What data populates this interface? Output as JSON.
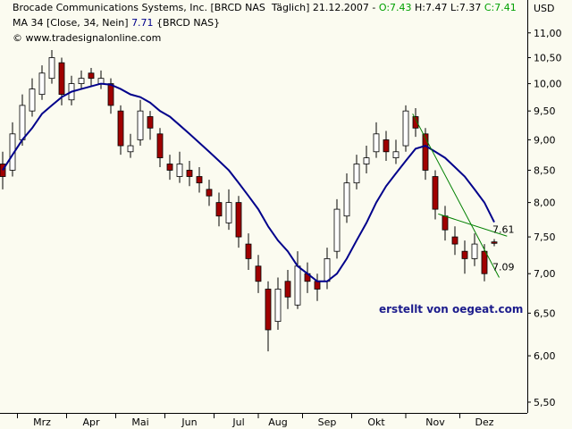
{
  "chart_data": {
    "type": "candlestick",
    "header": [
      [
        {
          "text": "Brocade Communications Systems, Inc. [BRCD NAS  Täglich] 21.12.2007 - ",
          "color": "#000000"
        },
        {
          "text": "O:7.43",
          "color": "#00a000"
        },
        {
          "text": " H:7.47 L:7.37 ",
          "color": "#000000"
        },
        {
          "text": "C:7.41",
          "color": "#00a000"
        }
      ],
      [
        {
          "text": "MA 34 [Close, 34, Nein] ",
          "color": "#000000"
        },
        {
          "text": "7.71",
          "color": "#00008b"
        },
        {
          "text": " {BRCD NAS}",
          "color": "#000000"
        }
      ],
      [
        {
          "text": "© www.tradesignalonline.com",
          "color": "#000000"
        }
      ]
    ],
    "axis_label": "USD",
    "watermark": "erstellt von oegeat.com",
    "categories": [
      null,
      null,
      null,
      null,
      "Mrz",
      null,
      null,
      null,
      null,
      "Apr",
      null,
      null,
      null,
      null,
      "Mai",
      null,
      null,
      null,
      null,
      "Jun",
      null,
      null,
      null,
      null,
      "Jul",
      null,
      null,
      null,
      "Aug",
      null,
      null,
      null,
      null,
      "Sep",
      null,
      null,
      null,
      null,
      "Okt",
      null,
      null,
      null,
      null,
      null,
      "Nov",
      null,
      null,
      null,
      null,
      "Dez",
      null
    ],
    "candles": {
      "up_color": "#ffffff",
      "down_color": "#a00000",
      "open": [
        8.6,
        8.5,
        9.0,
        9.5,
        9.8,
        10.1,
        10.4,
        9.7,
        10.0,
        10.2,
        10.0,
        10.0,
        9.5,
        8.8,
        9.0,
        9.4,
        9.1,
        8.6,
        8.4,
        8.5,
        8.4,
        8.2,
        8.0,
        7.7,
        8.0,
        7.4,
        7.1,
        6.8,
        6.4,
        6.9,
        6.6,
        7.0,
        6.9,
        6.9,
        7.3,
        7.8,
        8.3,
        8.6,
        8.8,
        9.0,
        8.7,
        8.9,
        9.4,
        9.1,
        8.4,
        7.8,
        7.5,
        7.3,
        7.2,
        7.3,
        7.43
      ],
      "high": [
        8.8,
        9.3,
        9.8,
        10.1,
        10.35,
        10.65,
        10.5,
        10.15,
        10.25,
        10.3,
        10.25,
        10.1,
        9.6,
        9.1,
        9.7,
        9.5,
        9.2,
        8.75,
        8.8,
        8.65,
        8.55,
        8.35,
        8.15,
        8.2,
        8.1,
        7.55,
        7.25,
        6.9,
        6.95,
        7.05,
        7.3,
        7.15,
        7.0,
        7.35,
        8.05,
        8.45,
        8.75,
        8.9,
        9.3,
        9.15,
        9.0,
        9.6,
        9.55,
        9.2,
        8.5,
        7.95,
        7.65,
        7.45,
        7.55,
        7.4,
        7.47
      ],
      "low": [
        8.2,
        8.4,
        8.9,
        9.4,
        9.7,
        10.0,
        9.6,
        9.6,
        9.9,
        9.95,
        9.9,
        9.45,
        8.75,
        8.7,
        8.9,
        9.0,
        8.55,
        8.35,
        8.3,
        8.25,
        8.15,
        7.95,
        7.65,
        7.6,
        7.35,
        7.05,
        6.75,
        6.05,
        6.3,
        6.55,
        6.55,
        6.75,
        6.65,
        6.8,
        7.2,
        7.7,
        8.2,
        8.45,
        8.7,
        8.65,
        8.6,
        8.8,
        9.05,
        8.35,
        7.75,
        7.45,
        7.25,
        7.0,
        7.1,
        6.9,
        7.37
      ],
      "close": [
        8.4,
        9.1,
        9.6,
        9.9,
        10.2,
        10.5,
        9.8,
        10.0,
        10.1,
        10.1,
        10.1,
        9.6,
        8.9,
        8.9,
        9.5,
        9.2,
        8.7,
        8.5,
        8.6,
        8.4,
        8.3,
        8.1,
        7.8,
        8.0,
        7.5,
        7.2,
        6.9,
        6.3,
        6.8,
        6.7,
        7.1,
        6.9,
        6.8,
        7.2,
        7.9,
        8.3,
        8.6,
        8.7,
        9.1,
        8.8,
        8.8,
        9.5,
        9.2,
        8.5,
        7.9,
        7.6,
        7.4,
        7.2,
        7.4,
        7.0,
        7.41
      ]
    },
    "series": [
      {
        "name": "MA 34",
        "color": "#00008b",
        "values": [
          8.5,
          8.75,
          9.0,
          9.2,
          9.45,
          9.6,
          9.75,
          9.85,
          9.9,
          9.95,
          10.0,
          9.98,
          9.9,
          9.8,
          9.75,
          9.65,
          9.5,
          9.4,
          9.25,
          9.1,
          8.95,
          8.8,
          8.65,
          8.5,
          8.3,
          8.1,
          7.9,
          7.65,
          7.45,
          7.3,
          7.1,
          7.0,
          6.9,
          6.9,
          7.0,
          7.2,
          7.45,
          7.7,
          8.0,
          8.25,
          8.45,
          8.65,
          8.85,
          8.9,
          8.8,
          8.7,
          8.55,
          8.4,
          8.2,
          8.0,
          7.71
        ]
      }
    ],
    "trendlines": [
      {
        "x": [
          41.7,
          50.5
        ],
        "values": [
          9.45,
          6.95
        ],
        "color": "#008000"
      },
      {
        "x": [
          44.3,
          51.3
        ],
        "values": [
          7.83,
          7.51
        ],
        "color": "#008000"
      }
    ],
    "levels": [
      {
        "value": 7.61,
        "color": "#008000"
      },
      {
        "value": 7.09,
        "color": "#008000"
      }
    ],
    "log_scale": true,
    "ylim": [
      5.39,
      11.7
    ],
    "yticks": [
      {
        "value": 11,
        "label": "11,00"
      },
      {
        "value": 10.5,
        "label": "10,50"
      },
      {
        "value": 10,
        "label": "10,00"
      },
      {
        "value": 9.5,
        "label": "9,50"
      },
      {
        "value": 9,
        "label": "9,00"
      },
      {
        "value": 8.5,
        "label": "8,50"
      },
      {
        "value": 8,
        "label": "8,00"
      },
      {
        "value": 7.5,
        "label": "7,50"
      },
      {
        "value": 7,
        "label": "7,00"
      },
      {
        "value": 6.5,
        "label": "6,50"
      },
      {
        "value": 6,
        "label": "6,00"
      },
      {
        "value": 5.5,
        "label": "5,50"
      }
    ]
  }
}
